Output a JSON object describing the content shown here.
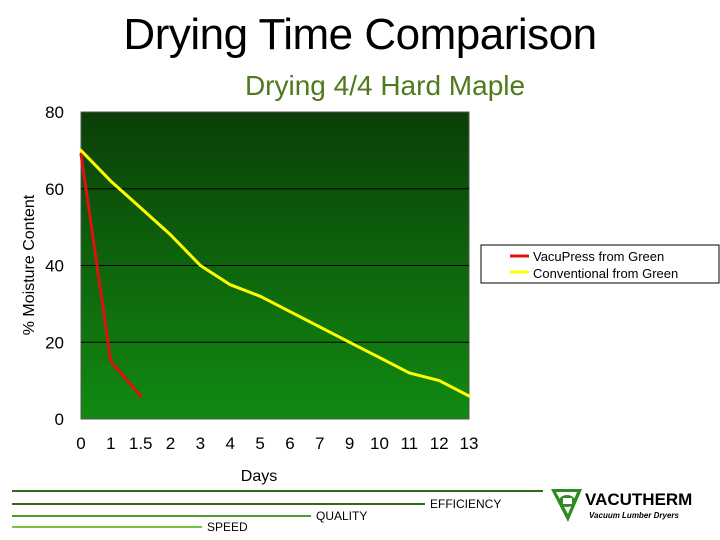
{
  "slide": {
    "title": "Drying Time Comparison",
    "subtitle": "Drying 4/4 Hard Maple"
  },
  "chart_data": {
    "type": "line",
    "title": "Drying 4/4 Hard Maple",
    "xlabel": "Days",
    "ylabel": "% Moisture Content",
    "categories": [
      "0",
      "1",
      "1.5",
      "2",
      "3",
      "4",
      "5",
      "6",
      "7",
      "9",
      "10",
      "11",
      "12",
      "13"
    ],
    "ylim": [
      0,
      80
    ],
    "yticks": [
      0,
      20,
      40,
      60,
      80
    ],
    "grid": true,
    "legend_position": "right",
    "background": "dark-green-gradient",
    "series": [
      {
        "name": "VacuPress from Green",
        "color": "#dd1111",
        "values": [
          69,
          15,
          6,
          null,
          null,
          null,
          null,
          null,
          null,
          null,
          null,
          null,
          null,
          null
        ]
      },
      {
        "name": "Conventional from Green",
        "color": "#ffff00",
        "values": [
          70,
          62,
          55,
          48,
          40,
          35,
          32,
          28,
          24,
          20,
          16,
          12,
          10,
          6
        ]
      }
    ]
  },
  "footer": {
    "items": [
      "EFFICIENCY",
      "QUALITY",
      "SPEED"
    ],
    "colors": [
      "#2f6a1a",
      "#4f9a2a",
      "#7cc242"
    ]
  },
  "logo": {
    "name": "VACUTHERM",
    "tagline": "Vacuum Lumber Dryers"
  }
}
